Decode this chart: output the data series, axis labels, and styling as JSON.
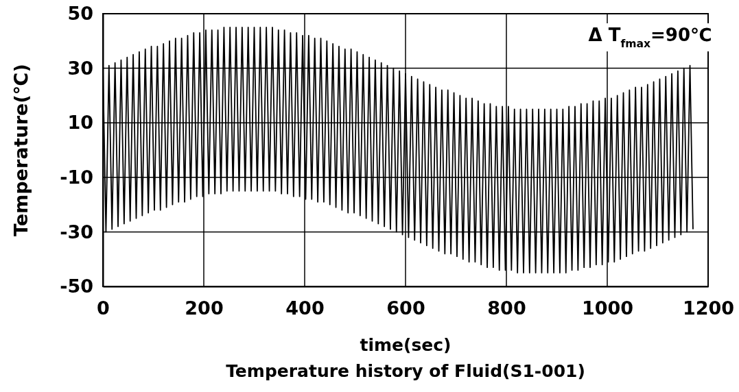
{
  "chart_data": {
    "type": "line",
    "title": "Temperature history of Fluid(S1-001)",
    "xlabel": "time(sec)",
    "ylabel": "Temperature(℃)",
    "annotations": [
      "Δ T$_{fmax}$=90℃"
    ],
    "xlim": [
      0,
      1200
    ],
    "xticks": [
      0,
      200,
      400,
      600,
      800,
      1000,
      1200
    ],
    "ylim": [
      -50,
      50
    ],
    "yticks": [
      -50,
      -30,
      -10,
      10,
      30,
      50
    ],
    "grid": true,
    "x": [
      0,
      6,
      12,
      18,
      24,
      30,
      36,
      42,
      48,
      54,
      60,
      66,
      72,
      78,
      84,
      90,
      96,
      102,
      108,
      114,
      120,
      126,
      132,
      138,
      144,
      150,
      156,
      162,
      168,
      174,
      180,
      186,
      192,
      198,
      204,
      210,
      216,
      222,
      228,
      234,
      240,
      246,
      252,
      258,
      264,
      270,
      276,
      282,
      288,
      294,
      300,
      306,
      312,
      318,
      324,
      330,
      336,
      342,
      348,
      354,
      360,
      366,
      372,
      378,
      384,
      390,
      396,
      402,
      408,
      414,
      420,
      426,
      432,
      438,
      444,
      450,
      456,
      462,
      468,
      474,
      480,
      486,
      492,
      498,
      504,
      510,
      516,
      522,
      528,
      534,
      540,
      546,
      552,
      558,
      564,
      570,
      576,
      582,
      588,
      594,
      600,
      606,
      612,
      618,
      624,
      630,
      636,
      642,
      648,
      654,
      660,
      666,
      672,
      678,
      684,
      690,
      696,
      702,
      708,
      714,
      720,
      726,
      732,
      738,
      744,
      750,
      756,
      762,
      768,
      774,
      780,
      786,
      792,
      798,
      804,
      810,
      816,
      822,
      828,
      834,
      840,
      846,
      852,
      858,
      864,
      870,
      876,
      882,
      888,
      894,
      900,
      906,
      912,
      918,
      924,
      930,
      936,
      942,
      948,
      954,
      960,
      966,
      972,
      978,
      984,
      990,
      996,
      1002,
      1008,
      1014,
      1020,
      1026,
      1032,
      1038,
      1044,
      1050,
      1056,
      1062,
      1068,
      1074,
      1080,
      1086,
      1092,
      1098,
      1104,
      1110,
      1116,
      1122,
      1128,
      1134,
      1140,
      1146,
      1152,
      1158,
      1164,
      1170
    ],
    "series": [
      {
        "color": "#000000",
        "values": [
          30,
          -30,
          31,
          -29,
          32,
          -28,
          33,
          -27,
          34,
          -26,
          35,
          -25,
          36,
          -24,
          37,
          -23,
          38,
          -22,
          38,
          -22,
          39,
          -21,
          40,
          -20,
          41,
          -19,
          41,
          -19,
          42,
          -18,
          43,
          -17,
          43,
          -17,
          44,
          -16,
          44,
          -16,
          44,
          -16,
          45,
          -15,
          45,
          -15,
          45,
          -15,
          45,
          -15,
          45,
          -15,
          45,
          -15,
          45,
          -15,
          45,
          -15,
          45,
          -15,
          44,
          -16,
          44,
          -16,
          43,
          -17,
          43,
          -17,
          42,
          -18,
          42,
          -18,
          41,
          -19,
          41,
          -19,
          40,
          -20,
          39,
          -21,
          38,
          -22,
          37,
          -23,
          37,
          -23,
          36,
          -24,
          35,
          -25,
          34,
          -26,
          33,
          -27,
          32,
          -28,
          31,
          -29,
          30,
          -30,
          29,
          -31,
          28,
          -32,
          27,
          -33,
          26,
          -34,
          25,
          -35,
          24,
          -36,
          23,
          -37,
          22,
          -38,
          22,
          -38,
          21,
          -39,
          20,
          -40,
          19,
          -41,
          19,
          -41,
          18,
          -42,
          17,
          -43,
          17,
          -43,
          16,
          -44,
          16,
          -44,
          16,
          -44,
          15,
          -45,
          15,
          -45,
          15,
          -45,
          15,
          -45,
          15,
          -45,
          15,
          -45,
          15,
          -45,
          15,
          -45,
          15,
          -45,
          16,
          -44,
          16,
          -44,
          17,
          -43,
          17,
          -43,
          18,
          -42,
          18,
          -42,
          19,
          -41,
          19,
          -41,
          20,
          -40,
          21,
          -39,
          22,
          -38,
          23,
          -37,
          23,
          -37,
          24,
          -36,
          25,
          -35,
          26,
          -34,
          27,
          -33,
          28,
          -32,
          29,
          -31,
          30,
          -30,
          31,
          -29
        ]
      }
    ]
  }
}
